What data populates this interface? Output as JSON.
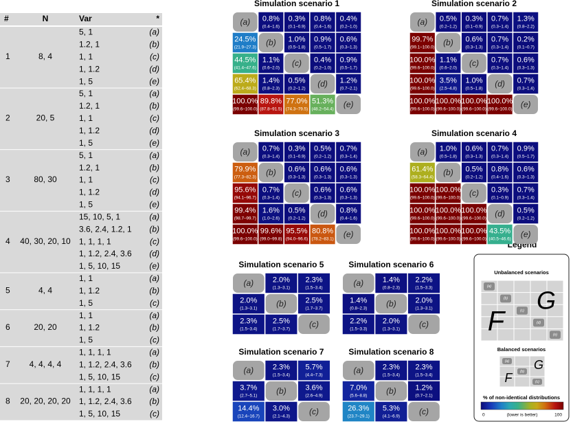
{
  "table": {
    "headers": [
      "#",
      "N",
      "Var",
      "*"
    ],
    "groups": [
      {
        "id": "1",
        "n": "8, 4",
        "rows": [
          [
            "5, 1",
            "(a)"
          ],
          [
            "1.2, 1",
            "(b)"
          ],
          [
            "1, 1",
            "(c)"
          ],
          [
            "1, 1.2",
            "(d)"
          ],
          [
            "1, 5",
            "(e)"
          ]
        ]
      },
      {
        "id": "2",
        "n": "20, 5",
        "rows": [
          [
            "5, 1",
            "(a)"
          ],
          [
            "1.2, 1",
            "(b)"
          ],
          [
            "1, 1",
            "(c)"
          ],
          [
            "1, 1.2",
            "(d)"
          ],
          [
            "1, 5",
            "(e)"
          ]
        ]
      },
      {
        "id": "3",
        "n": "80, 30",
        "rows": [
          [
            "5, 1",
            "(a)"
          ],
          [
            "1.2, 1",
            "(b)"
          ],
          [
            "1, 1",
            "(c)"
          ],
          [
            "1, 1.2",
            "(d)"
          ],
          [
            "1, 5",
            "(e)"
          ]
        ]
      },
      {
        "id": "4",
        "n": "40, 30, 20, 10",
        "rows": [
          [
            "15, 10, 5, 1",
            "(a)"
          ],
          [
            "3.6, 2.4, 1.2, 1",
            "(b)"
          ],
          [
            "1, 1, 1, 1",
            "(c)"
          ],
          [
            "1, 1.2, 2.4, 3.6",
            "(d)"
          ],
          [
            "1, 5, 10, 15",
            "(e)"
          ]
        ]
      },
      {
        "id": "5",
        "n": "4, 4",
        "rows": [
          [
            "1, 1",
            "(a)"
          ],
          [
            "1, 1.2",
            "(b)"
          ],
          [
            "1, 5",
            "(c)"
          ]
        ]
      },
      {
        "id": "6",
        "n": "20, 20",
        "rows": [
          [
            "1, 1",
            "(a)"
          ],
          [
            "1, 1.2",
            "(b)"
          ],
          [
            "1, 5",
            "(c)"
          ]
        ]
      },
      {
        "id": "7",
        "n": "4, 4, 4, 4",
        "rows": [
          [
            "1, 1, 1, 1",
            "(a)"
          ],
          [
            "1, 1.2, 2.4, 3.6",
            "(b)"
          ],
          [
            "1, 5, 10, 15",
            "(c)"
          ]
        ]
      },
      {
        "id": "8",
        "n": "20, 20, 20, 20",
        "rows": [
          [
            "1, 1, 1, 1",
            "(a)"
          ],
          [
            "1, 1.2, 2.4, 3.6",
            "(b)"
          ],
          [
            "1, 5, 10, 15",
            "(c)"
          ]
        ]
      }
    ]
  },
  "scenarios": [
    {
      "title": "Simulation scenario 1",
      "cells": [
        [
          "(a)",
          {
            "v": 0.8,
            "label": "0.8%",
            "ci": "(0.4–1.6)"
          },
          {
            "v": 0.3,
            "label": "0.3%",
            "ci": "(0.1–0.9)"
          },
          {
            "v": 0.8,
            "label": "0.8%",
            "ci": "(0.4–1.6)"
          },
          {
            "v": 0.4,
            "label": "0.4%",
            "ci": "(0.2–1.0)"
          }
        ],
        [
          {
            "v": 24.5,
            "label": "24.5%",
            "ci": "(21.9–27.3)"
          },
          "(b)",
          {
            "v": 1.0,
            "label": "1.0%",
            "ci": "(0.5–1.8)"
          },
          {
            "v": 0.9,
            "label": "0.9%",
            "ci": "(0.5–1.7)"
          },
          {
            "v": 0.6,
            "label": "0.6%",
            "ci": "(0.3–1.3)"
          }
        ],
        [
          {
            "v": 44.5,
            "label": "44.5%",
            "ci": "(41.4–47.6)"
          },
          {
            "v": 1.1,
            "label": "1.1%",
            "ci": "(0.6–2.0)"
          },
          "(c)",
          {
            "v": 0.4,
            "label": "0.4%",
            "ci": "(0.2–1.0)"
          },
          {
            "v": 0.9,
            "label": "0.9%",
            "ci": "(0.5–1.7)"
          }
        ],
        [
          {
            "v": 65.4,
            "label": "65.4%",
            "ci": "(62.4–68.3)"
          },
          {
            "v": 1.4,
            "label": "1.4%",
            "ci": "(0.8–2.3)"
          },
          {
            "v": 0.5,
            "label": "0.5%",
            "ci": "(0.2–1.2)"
          },
          "(d)",
          {
            "v": 1.2,
            "label": "1.2%",
            "ci": "(0.7–2.1)"
          }
        ],
        [
          {
            "v": 100.0,
            "label": "100.0%",
            "ci": "(99.6–100.0)"
          },
          {
            "v": 89.8,
            "label": "89.8%",
            "ci": "(87.8–91.5)"
          },
          {
            "v": 77.0,
            "label": "77.0%",
            "ci": "(74.3–79.5)"
          },
          {
            "v": 51.3,
            "label": "51.3%",
            "ci": "(48.2–54.4)"
          },
          "(e)"
        ]
      ]
    },
    {
      "title": "Simulation scenario 2",
      "cells": [
        [
          "(a)",
          {
            "v": 0.5,
            "label": "0.5%",
            "ci": "(0.2–1.2)"
          },
          {
            "v": 0.3,
            "label": "0.3%",
            "ci": "(0.1–0.9)"
          },
          {
            "v": 0.7,
            "label": "0.7%",
            "ci": "(0.3–1.4)"
          },
          {
            "v": 1.3,
            "label": "1.3%",
            "ci": "(0.8–2.2)"
          }
        ],
        [
          {
            "v": 99.7,
            "label": "99.7%",
            "ci": "(99.1–100.0)"
          },
          "(b)",
          {
            "v": 0.6,
            "label": "0.6%",
            "ci": "(0.3–1.3)"
          },
          {
            "v": 0.7,
            "label": "0.7%",
            "ci": "(0.3–1.4)"
          },
          {
            "v": 0.2,
            "label": "0.2%",
            "ci": "(0.1–0.7)"
          }
        ],
        [
          {
            "v": 100.0,
            "label": "100.0%",
            "ci": "(99.6–100.0)"
          },
          {
            "v": 1.1,
            "label": "1.1%",
            "ci": "(0.6–2.0)"
          },
          "(c)",
          {
            "v": 0.7,
            "label": "0.7%",
            "ci": "(0.3–1.4)"
          },
          {
            "v": 0.6,
            "label": "0.6%",
            "ci": "(0.3–1.3)"
          }
        ],
        [
          {
            "v": 100.0,
            "label": "100.0%",
            "ci": "(99.6–100.0)"
          },
          {
            "v": 3.5,
            "label": "3.5%",
            "ci": "(2.5–4.8)"
          },
          {
            "v": 1.0,
            "label": "1.0%",
            "ci": "(0.5–1.8)"
          },
          "(d)",
          {
            "v": 0.7,
            "label": "0.7%",
            "ci": "(0.3–1.4)"
          }
        ],
        [
          {
            "v": 100.0,
            "label": "100.0%",
            "ci": "(99.6–100.0)"
          },
          {
            "v": 100.0,
            "label": "100.0%",
            "ci": "(99.6–100.0)"
          },
          {
            "v": 100.0,
            "label": "100.0%",
            "ci": "(99.6–100.0)"
          },
          {
            "v": 100.0,
            "label": "100.0%",
            "ci": "(99.6–100.0)"
          },
          "(e)"
        ]
      ]
    },
    {
      "title": "Simulation scenario 3",
      "cells": [
        [
          "(a)",
          {
            "v": 0.7,
            "label": "0.7%",
            "ci": "(0.3–1.4)"
          },
          {
            "v": 0.3,
            "label": "0.3%",
            "ci": "(0.1–0.9)"
          },
          {
            "v": 0.5,
            "label": "0.5%",
            "ci": "(0.2–1.2)"
          },
          {
            "v": 0.7,
            "label": "0.7%",
            "ci": "(0.3–1.4)"
          }
        ],
        [
          {
            "v": 79.9,
            "label": "79.9%",
            "ci": "(77.3–82.3)"
          },
          "(b)",
          {
            "v": 0.6,
            "label": "0.6%",
            "ci": "(0.3–1.3)"
          },
          {
            "v": 0.6,
            "label": "0.6%",
            "ci": "(0.3–1.3)"
          },
          {
            "v": 0.6,
            "label": "0.6%",
            "ci": "(0.3–1.3)"
          }
        ],
        [
          {
            "v": 95.6,
            "label": "95.6%",
            "ci": "(94.1–96.7)"
          },
          {
            "v": 0.7,
            "label": "0.7%",
            "ci": "(0.3–1.4)"
          },
          "(c)",
          {
            "v": 0.6,
            "label": "0.6%",
            "ci": "(0.3–1.3)"
          },
          {
            "v": 0.6,
            "label": "0.6%",
            "ci": "(0.3–1.3)"
          }
        ],
        [
          {
            "v": 99.4,
            "label": "99.4%",
            "ci": "(98.7–99.7)"
          },
          {
            "v": 1.6,
            "label": "1.6%",
            "ci": "(1.0–2.6)"
          },
          {
            "v": 0.5,
            "label": "0.5%",
            "ci": "(0.2–1.2)"
          },
          "(d)",
          {
            "v": 0.8,
            "label": "0.8%",
            "ci": "(0.4–1.6)"
          }
        ],
        [
          {
            "v": 100.0,
            "label": "100.0%",
            "ci": "(99.6–100.0)"
          },
          {
            "v": 99.6,
            "label": "99.6%",
            "ci": "(99.0–99.8)"
          },
          {
            "v": 95.5,
            "label": "95.5%",
            "ci": "(94.0–96.6)"
          },
          {
            "v": 80.8,
            "label": "80.8%",
            "ci": "(78.2–83.1)"
          },
          "(e)"
        ]
      ]
    },
    {
      "title": "Simulation scenario 4",
      "cells": [
        [
          "(a)",
          {
            "v": 1.0,
            "label": "1.0%",
            "ci": "(0.5–1.8)"
          },
          {
            "v": 0.6,
            "label": "0.6%",
            "ci": "(0.3–1.3)"
          },
          {
            "v": 0.7,
            "label": "0.7%",
            "ci": "(0.3–1.4)"
          },
          {
            "v": 0.9,
            "label": "0.9%",
            "ci": "(0.5–1.7)"
          }
        ],
        [
          {
            "v": 61.4,
            "label": "61.4%",
            "ci": "(58.3–64.4)"
          },
          "(b)",
          {
            "v": 0.5,
            "label": "0.5%",
            "ci": "(0.2–1.2)"
          },
          {
            "v": 0.8,
            "label": "0.8%",
            "ci": "(0.4–1.6)"
          },
          {
            "v": 0.6,
            "label": "0.6%",
            "ci": "(0.3–1.3)"
          }
        ],
        [
          {
            "v": 100.0,
            "label": "100.0%",
            "ci": "(99.6–100.0)"
          },
          {
            "v": 100.0,
            "label": "100.0%",
            "ci": "(99.6–100.0)"
          },
          "(c)",
          {
            "v": 0.3,
            "label": "0.3%",
            "ci": "(0.1–0.9)"
          },
          {
            "v": 0.7,
            "label": "0.7%",
            "ci": "(0.3–1.4)"
          }
        ],
        [
          {
            "v": 100.0,
            "label": "100.0%",
            "ci": "(99.6–100.0)"
          },
          {
            "v": 100.0,
            "label": "100.0%",
            "ci": "(99.6–100.0)"
          },
          {
            "v": 100.0,
            "label": "100.0%",
            "ci": "(99.6–100.0)"
          },
          "(d)",
          {
            "v": 0.5,
            "label": "0.5%",
            "ci": "(0.2–1.2)"
          }
        ],
        [
          {
            "v": 100.0,
            "label": "100.0%",
            "ci": "(99.6–100.0)"
          },
          {
            "v": 100.0,
            "label": "100.0%",
            "ci": "(99.6–100.0)"
          },
          {
            "v": 100.0,
            "label": "100.0%",
            "ci": "(99.6–100.0)"
          },
          {
            "v": 43.5,
            "label": "43.5%",
            "ci": "(40.5–46.6)"
          },
          "(e)"
        ]
      ]
    },
    {
      "title": "Simulation scenario 5",
      "cells": [
        [
          "(a)",
          {
            "v": 2.0,
            "label": "2.0%",
            "ci": "(1.3–3.1)"
          },
          {
            "v": 2.3,
            "label": "2.3%",
            "ci": "(1.5–3.4)"
          }
        ],
        [
          {
            "v": 2.0,
            "label": "2.0%",
            "ci": "(1.3–3.1)"
          },
          "(b)",
          {
            "v": 2.5,
            "label": "2.5%",
            "ci": "(1.7–3.7)"
          }
        ],
        [
          {
            "v": 2.3,
            "label": "2.3%",
            "ci": "(1.5–3.4)"
          },
          {
            "v": 2.5,
            "label": "2.5%",
            "ci": "(1.7–3.7)"
          },
          "(c)"
        ]
      ]
    },
    {
      "title": "Simulation scenario 6",
      "cells": [
        [
          "(a)",
          {
            "v": 1.4,
            "label": "1.4%",
            "ci": "(0.8–2.3)"
          },
          {
            "v": 2.2,
            "label": "2.2%",
            "ci": "(1.5–3.3)"
          }
        ],
        [
          {
            "v": 1.4,
            "label": "1.4%",
            "ci": "(0.8–2.3)"
          },
          "(b)",
          {
            "v": 2.0,
            "label": "2.0%",
            "ci": "(1.3–3.1)"
          }
        ],
        [
          {
            "v": 2.2,
            "label": "2.2%",
            "ci": "(1.5–3.3)"
          },
          {
            "v": 2.0,
            "label": "2.0%",
            "ci": "(1.3–3.1)"
          },
          "(c)"
        ]
      ]
    },
    {
      "title": "Simulation scenario 7",
      "cells": [
        [
          "(a)",
          {
            "v": 2.3,
            "label": "2.3%",
            "ci": "(1.5–3.4)"
          },
          {
            "v": 5.7,
            "label": "5.7%",
            "ci": "(4.4–7.3)"
          }
        ],
        [
          {
            "v": 3.7,
            "label": "3.7%",
            "ci": "(2.7–5.1)"
          },
          "(b)",
          {
            "v": 3.6,
            "label": "3.6%",
            "ci": "(2.6–4.9)"
          }
        ],
        [
          {
            "v": 14.4,
            "label": "14.4%",
            "ci": "(12.4–16.7)"
          },
          {
            "v": 3.0,
            "label": "3.0%",
            "ci": "(2.1–4.3)"
          },
          "(c)"
        ]
      ]
    },
    {
      "title": "Simulation scenario 8",
      "cells": [
        [
          "(a)",
          {
            "v": 2.3,
            "label": "2.3%",
            "ci": "(1.5–3.4)"
          },
          {
            "v": 2.3,
            "label": "2.3%",
            "ci": "(1.5–3.4)"
          }
        ],
        [
          {
            "v": 7.0,
            "label": "7.0%",
            "ci": "(5.6–8.8)"
          },
          "(b)",
          {
            "v": 1.2,
            "label": "1.2%",
            "ci": "(0.7–2.1)"
          }
        ],
        [
          {
            "v": 26.3,
            "label": "26.3%",
            "ci": "(23.7–29.1)"
          },
          {
            "v": 5.3,
            "label": "5.3%",
            "ci": "(4.1–6.9)"
          },
          "(c)"
        ]
      ]
    }
  ],
  "legend": {
    "title": "Legend",
    "unbalanced": {
      "heading": "Unbalanced scenarios",
      "labels": [
        "(a)",
        "(b)",
        "(c)",
        "(d)",
        "(e)"
      ],
      "lower": "F",
      "upper": "G"
    },
    "balanced": {
      "heading": "Balanced scenarios",
      "labels": [
        "(a)",
        "(b)",
        "(c)"
      ],
      "lower": "F",
      "upper": "G"
    },
    "colorbar": {
      "label": "% of non-identical distributions",
      "ticks": [
        0,
        100
      ],
      "note": "(lower is better)"
    }
  }
}
